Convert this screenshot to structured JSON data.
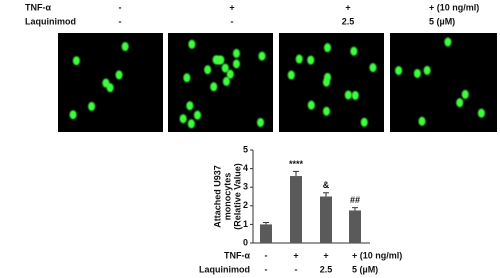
{
  "header": {
    "rows": [
      {
        "name": "TNF-α",
        "labels": [
          "-",
          "+",
          "+",
          "+ (10 ng/ml)"
        ]
      },
      {
        "name": "Laquinimod",
        "labels": [
          "-",
          "-",
          "2.5",
          "5 (µM)"
        ]
      }
    ]
  },
  "chart_data": {
    "type": "bar",
    "y_label": [
      "Attached U937",
      "monocytes",
      "(Relative Value)"
    ],
    "values": [
      1.0,
      3.6,
      2.5,
      1.75
    ],
    "errors": [
      0.1,
      0.25,
      0.2,
      0.15
    ],
    "annotations": [
      null,
      "****",
      "&",
      "##"
    ],
    "color": "#5a5a5a",
    "ylim": [
      0,
      5
    ],
    "yticks": [
      0,
      1,
      2,
      3,
      4,
      5
    ],
    "treatments": [
      {
        "name": "TNF-α",
        "labels": [
          "-",
          "+",
          "+",
          "+ (10 ng/ml)"
        ]
      },
      {
        "name": "Laquinimod",
        "labels": [
          "-",
          "-",
          "2.5",
          "5 (µM)"
        ]
      }
    ]
  }
}
